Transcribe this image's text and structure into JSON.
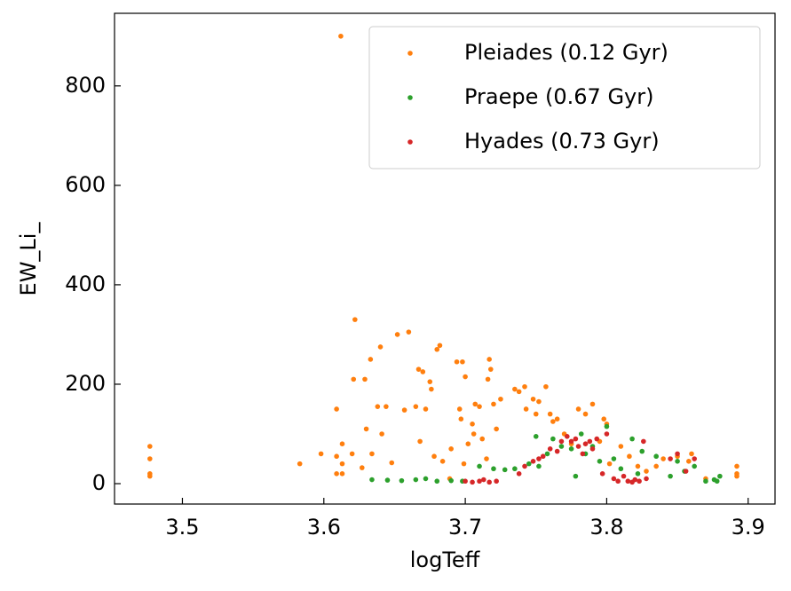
{
  "chart_data": {
    "type": "scatter",
    "xlabel": "logTeff",
    "ylabel": "EW_Li_",
    "xlim": [
      3.452,
      3.919
    ],
    "ylim": [
      -41,
      946
    ],
    "xticks": [
      3.5,
      3.6,
      3.7,
      3.8,
      3.9
    ],
    "yticks": [
      0,
      200,
      400,
      600,
      800
    ],
    "legend": "upper right",
    "series": [
      {
        "name": "Pleiades (0.12 Gyr)",
        "color": "#ff7f0e",
        "x": [
          3.477,
          3.477,
          3.477,
          3.477,
          3.583,
          3.598,
          3.609,
          3.609,
          3.609,
          3.612,
          3.613,
          3.613,
          3.613,
          3.62,
          3.622,
          3.621,
          3.627,
          3.629,
          3.63,
          3.633,
          3.634,
          3.638,
          3.64,
          3.641,
          3.644,
          3.648,
          3.652,
          3.657,
          3.66,
          3.665,
          3.667,
          3.668,
          3.67,
          3.672,
          3.675,
          3.676,
          3.678,
          3.68,
          3.682,
          3.684,
          3.689,
          3.69,
          3.694,
          3.696,
          3.697,
          3.698,
          3.699,
          3.7,
          3.702,
          3.705,
          3.706,
          3.707,
          3.71,
          3.712,
          3.715,
          3.716,
          3.717,
          3.718,
          3.72,
          3.722,
          3.725,
          3.735,
          3.738,
          3.742,
          3.743,
          3.748,
          3.75,
          3.752,
          3.757,
          3.76,
          3.762,
          3.765,
          3.77,
          3.775,
          3.78,
          3.785,
          3.79,
          3.795,
          3.798,
          3.8,
          3.802,
          3.81,
          3.816,
          3.822,
          3.828,
          3.835,
          3.84,
          3.85,
          3.858,
          3.86,
          3.87,
          3.892,
          3.892,
          3.892
        ],
        "y": [
          75,
          50,
          20,
          15,
          40,
          60,
          150,
          55,
          20,
          900,
          80,
          40,
          20,
          60,
          330,
          210,
          32,
          210,
          110,
          250,
          60,
          155,
          275,
          100,
          155,
          42,
          300,
          148,
          305,
          155,
          230,
          85,
          225,
          150,
          205,
          190,
          55,
          270,
          278,
          45,
          10,
          70,
          245,
          150,
          130,
          245,
          40,
          215,
          80,
          120,
          100,
          160,
          155,
          90,
          50,
          210,
          250,
          230,
          160,
          110,
          170,
          190,
          185,
          195,
          150,
          170,
          140,
          165,
          195,
          140,
          125,
          130,
          100,
          80,
          150,
          140,
          160,
          85,
          130,
          120,
          40,
          75,
          55,
          35,
          25,
          35,
          50,
          55,
          45,
          60,
          10,
          35,
          15,
          20
        ]
      },
      {
        "name": "Praepe (0.67 Gyr)",
        "color": "#2ca02c",
        "x": [
          3.634,
          3.645,
          3.655,
          3.665,
          3.672,
          3.68,
          3.69,
          3.698,
          3.71,
          3.72,
          3.728,
          3.735,
          3.745,
          3.75,
          3.752,
          3.758,
          3.762,
          3.768,
          3.775,
          3.778,
          3.782,
          3.785,
          3.79,
          3.795,
          3.8,
          3.805,
          3.81,
          3.818,
          3.822,
          3.825,
          3.835,
          3.845,
          3.85,
          3.855,
          3.862,
          3.87,
          3.876,
          3.88,
          3.878
        ],
        "y": [
          8,
          7,
          6,
          8,
          10,
          5,
          6,
          5,
          35,
          30,
          28,
          30,
          40,
          95,
          35,
          60,
          90,
          75,
          70,
          15,
          100,
          60,
          75,
          45,
          115,
          50,
          30,
          90,
          20,
          65,
          55,
          15,
          45,
          25,
          35,
          5,
          8,
          15,
          5
        ]
      },
      {
        "name": "Hyades (0.73 Gyr)",
        "color": "#d62728",
        "x": [
          3.7,
          3.705,
          3.71,
          3.713,
          3.717,
          3.722,
          3.738,
          3.742,
          3.748,
          3.752,
          3.755,
          3.76,
          3.765,
          3.768,
          3.772,
          3.775,
          3.778,
          3.78,
          3.783,
          3.785,
          3.788,
          3.79,
          3.793,
          3.797,
          3.8,
          3.805,
          3.808,
          3.812,
          3.815,
          3.818,
          3.82,
          3.823,
          3.826,
          3.828,
          3.845,
          3.85,
          3.856,
          3.862
        ],
        "y": [
          5,
          3,
          5,
          8,
          3,
          5,
          20,
          35,
          45,
          50,
          55,
          70,
          65,
          85,
          95,
          85,
          90,
          75,
          60,
          80,
          85,
          70,
          90,
          20,
          100,
          10,
          5,
          15,
          5,
          3,
          8,
          5,
          85,
          10,
          50,
          60,
          25,
          50
        ]
      }
    ]
  }
}
